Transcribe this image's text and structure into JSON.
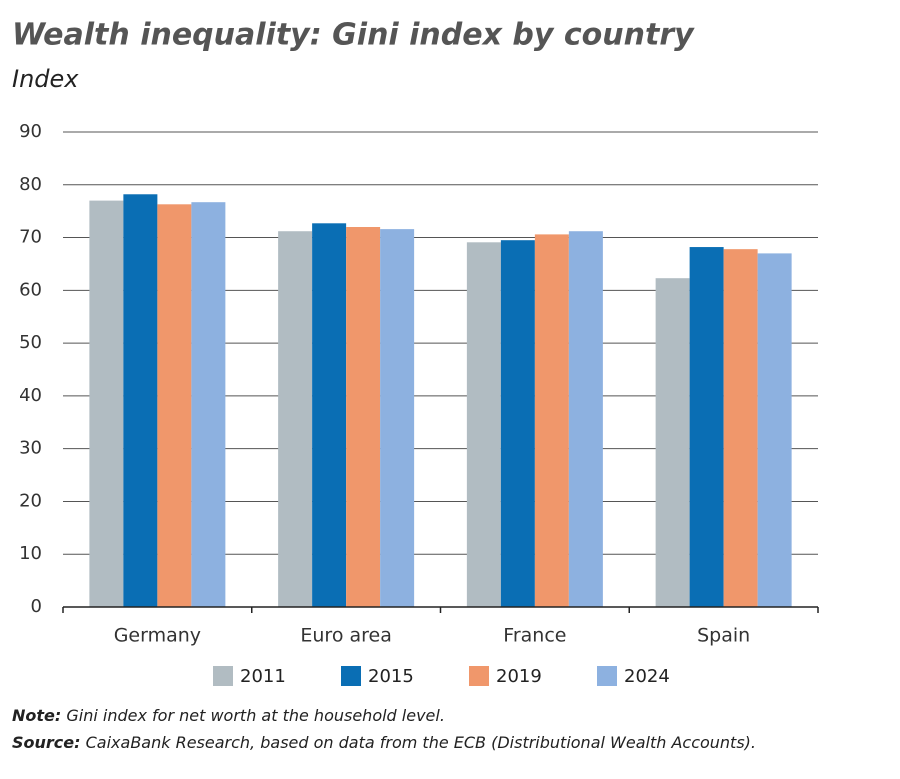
{
  "chart_data": {
    "type": "bar",
    "title": "Wealth inequality: Gini index by country",
    "subtitle": "Index",
    "categories": [
      "Germany",
      "Euro area",
      "France",
      "Spain"
    ],
    "series": [
      {
        "name": "2011",
        "color": "#b1bcc2",
        "values": [
          77.0,
          71.2,
          69.1,
          62.3
        ]
      },
      {
        "name": "2015",
        "color": "#0a6eb4",
        "values": [
          78.2,
          72.7,
          69.5,
          68.2
        ]
      },
      {
        "name": "2019",
        "color": "#f0976b",
        "values": [
          76.3,
          72.0,
          70.6,
          67.8
        ]
      },
      {
        "name": "2024",
        "color": "#8db1e0",
        "values": [
          76.7,
          71.6,
          71.2,
          67.0
        ]
      }
    ],
    "ylim": [
      0,
      90
    ],
    "yticks": [
      0,
      10,
      20,
      30,
      40,
      50,
      60,
      70,
      80,
      90
    ],
    "grid": true,
    "note_label": "Note:",
    "note": "Gini index for net worth at the household level.",
    "source_label": "Source:",
    "source": "CaixaBank Research, based on data from the ECB (Distributional Wealth Accounts)."
  }
}
